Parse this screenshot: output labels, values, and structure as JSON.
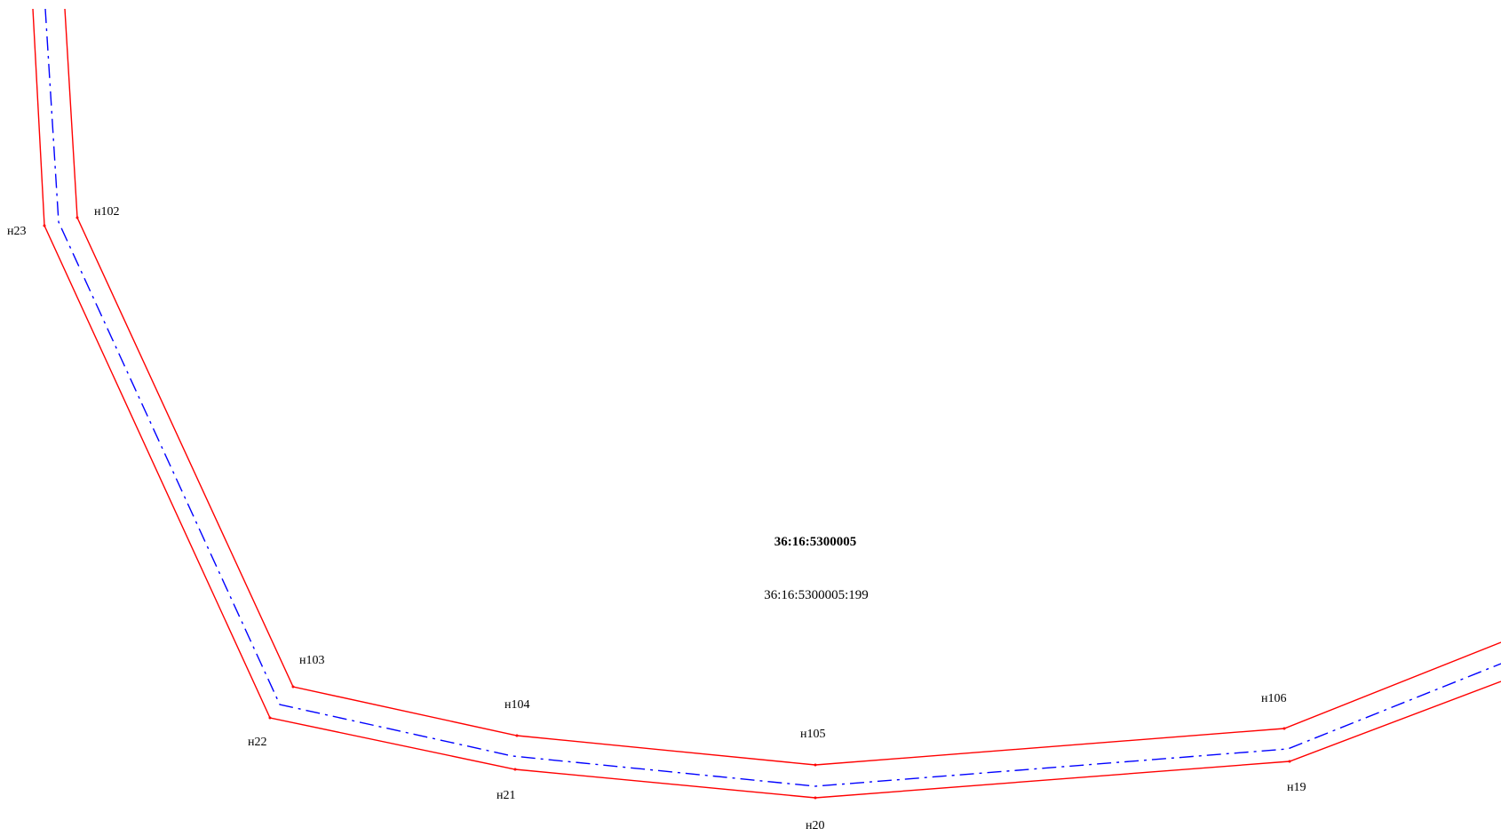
{
  "map": {
    "quarter_number": "36:16:5300005",
    "parcel_number": "36:16:5300005:199",
    "colors": {
      "boundary": "#ff0000",
      "centerline": "#0000ff",
      "text": "#000000",
      "background": "#ffffff"
    },
    "points": {
      "n23": "н23",
      "n102": "н102",
      "n103": "н103",
      "n22": "н22",
      "n104": "н104",
      "n21": "н21",
      "n105": "н105",
      "n20": "н20",
      "n106": "н106",
      "n19": "н19"
    }
  }
}
